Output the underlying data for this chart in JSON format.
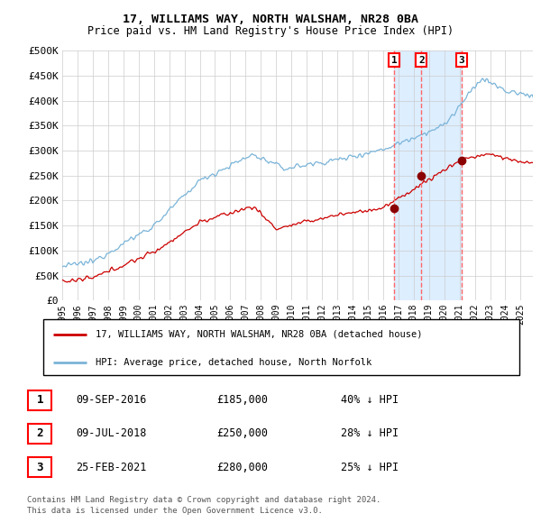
{
  "title": "17, WILLIAMS WAY, NORTH WALSHAM, NR28 0BA",
  "subtitle": "Price paid vs. HM Land Registry's House Price Index (HPI)",
  "legend_line1": "17, WILLIAMS WAY, NORTH WALSHAM, NR28 0BA (detached house)",
  "legend_line2": "HPI: Average price, detached house, North Norfolk",
  "footer1": "Contains HM Land Registry data © Crown copyright and database right 2024.",
  "footer2": "This data is licensed under the Open Government Licence v3.0.",
  "sale_dates": [
    "09-SEP-2016",
    "09-JUL-2018",
    "25-FEB-2021"
  ],
  "sale_prices": [
    185000,
    250000,
    280000
  ],
  "sale_labels": [
    "1",
    "2",
    "3"
  ],
  "sale_hpi_pct": [
    "40% ↓ HPI",
    "28% ↓ HPI",
    "25% ↓ HPI"
  ],
  "hpi_color": "#7ab4d8",
  "price_color": "#cc0000",
  "sale_marker_color": "#8b0000",
  "dashed_line_color": "#ff6666",
  "shade_color": "#ddeeff",
  "background_color": "#ffffff",
  "grid_color": "#cccccc",
  "ylim": [
    0,
    500000
  ],
  "yticks": [
    0,
    50000,
    100000,
    150000,
    200000,
    250000,
    300000,
    350000,
    400000,
    450000,
    500000
  ],
  "sale_dates_num": [
    2016.708,
    2018.5,
    2021.125
  ]
}
